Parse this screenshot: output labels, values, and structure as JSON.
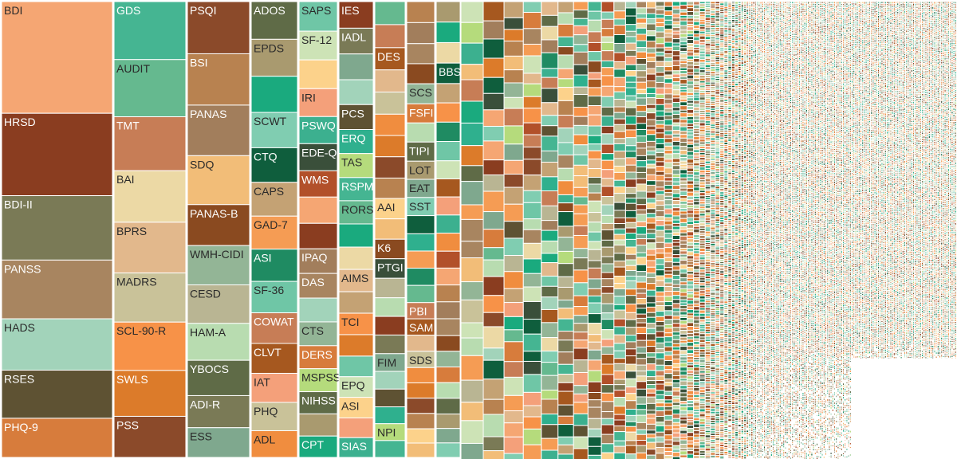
{
  "chart_data": {
    "type": "treemap",
    "layout": "columns of decreasing width, left to right, cells sorted by size",
    "palette": [
      "#f5a673",
      "#6fc6a6",
      "#a99a6f",
      "#a27e5c",
      "#a6581f",
      "#80cdb1",
      "#8a4a20",
      "#c9c299",
      "#2fb08e",
      "#b9b593",
      "#dc7b2a",
      "#45b592",
      "#8a3d20",
      "#cde3b6",
      "#1aaa7e",
      "#a88560",
      "#f4a07a",
      "#0f5e3d",
      "#93b596",
      "#f08d3f",
      "#f59c54",
      "#b8dcb0",
      "#8b4a2a",
      "#65b98f",
      "#7a7a56",
      "#fcd28b",
      "#ecd9a5",
      "#a2d3ba",
      "#3cb08f",
      "#c4a274",
      "#d77c3c",
      "#b2502a",
      "#1f8b62",
      "#5f6b47",
      "#b88250",
      "#c77d56",
      "#7fa88e",
      "#f2bd78",
      "#e2b88c",
      "#5e5233",
      "#3a4f3a",
      "#f79248",
      "#b5db7c"
    ],
    "columns": [
      [
        {
          "label": "BDI",
          "value": 137
        },
        {
          "label": "HRSD",
          "value": 101
        },
        {
          "label": "BDI-II",
          "value": 79
        },
        {
          "label": "PANSS",
          "value": 72
        },
        {
          "label": "HADS",
          "value": 63
        },
        {
          "label": "RSES",
          "value": 59
        },
        {
          "label": "PHQ-9",
          "value": 48
        }
      ],
      [
        {
          "label": "GDS",
          "value": 72
        },
        {
          "label": "AUDIT",
          "value": 71
        },
        {
          "label": "TMT",
          "value": 67
        },
        {
          "label": "BAI",
          "value": 64
        },
        {
          "label": "BPRS",
          "value": 63
        },
        {
          "label": "MADRS",
          "value": 61
        },
        {
          "label": "SCL-90-R",
          "value": 60
        },
        {
          "label": "SWLS",
          "value": 57
        },
        {
          "label": "PSS",
          "value": 51
        }
      ],
      [
        {
          "label": "PSQI",
          "value": 65
        },
        {
          "label": "BSI",
          "value": 64
        },
        {
          "label": "PANAS",
          "value": 63
        },
        {
          "label": "SDQ",
          "value": 61
        },
        {
          "label": "PANAS-B",
          "value": 51
        },
        {
          "label": "WMH-CIDI",
          "value": 49
        },
        {
          "label": "CESD",
          "value": 48
        },
        {
          "label": "HAM-A",
          "value": 46
        },
        {
          "label": "YBOCS",
          "value": 44
        },
        {
          "label": "ADI-R",
          "value": 40
        },
        {
          "label": "ESS",
          "value": 37
        }
      ],
      [
        {
          "label": "ADOS",
          "value": 48
        },
        {
          "label": "EPDS",
          "value": 47
        },
        {
          "label": "",
          "value": 46
        },
        {
          "label": "SCWT",
          "value": 45
        },
        {
          "label": "CTQ",
          "value": 44
        },
        {
          "label": "CAPS",
          "value": 43
        },
        {
          "label": "GAD-7",
          "value": 42
        },
        {
          "label": "ASI",
          "value": 41
        },
        {
          "label": "SF-36",
          "value": 40
        },
        {
          "label": "COWAT",
          "value": 39
        },
        {
          "label": "CLVT",
          "value": 38
        },
        {
          "label": "IAT",
          "value": 37
        },
        {
          "label": "PHQ",
          "value": 36
        },
        {
          "label": "ADL",
          "value": 34
        }
      ],
      [
        {
          "label": "SAPS",
          "value": 36
        },
        {
          "label": "SF-12",
          "value": 35
        },
        {
          "label": "",
          "value": 35
        },
        {
          "label": "IRI",
          "value": 34
        },
        {
          "label": "PSWQ",
          "value": 33
        },
        {
          "label": "EDE-Q",
          "value": 33
        },
        {
          "label": "WMS",
          "value": 32
        },
        {
          "label": "",
          "value": 32
        },
        {
          "label": "",
          "value": 31
        },
        {
          "label": "IPAQ",
          "value": 30
        },
        {
          "label": "DAS",
          "value": 30
        },
        {
          "label": "",
          "value": 29
        },
        {
          "label": "CTS",
          "value": 29
        },
        {
          "label": "DERS",
          "value": 28
        },
        {
          "label": "MSPSS",
          "value": 28
        },
        {
          "label": "NIHSS",
          "value": 27
        },
        {
          "label": "",
          "value": 27
        },
        {
          "label": "CPT",
          "value": 26
        }
      ],
      [
        {
          "label": "IES",
          "value": 31
        },
        {
          "label": "IADL",
          "value": 30
        },
        {
          "label": "",
          "value": 30
        },
        {
          "label": "",
          "value": 29
        },
        {
          "label": "PCS",
          "value": 29
        },
        {
          "label": "ERQ",
          "value": 28
        },
        {
          "label": "TAS",
          "value": 28
        },
        {
          "label": "RSPM",
          "value": 27
        },
        {
          "label": "RORS",
          "value": 27
        },
        {
          "label": "",
          "value": 27
        },
        {
          "label": "",
          "value": 26
        },
        {
          "label": "AIMS",
          "value": 26
        },
        {
          "label": "",
          "value": 25
        },
        {
          "label": "TCI",
          "value": 25
        },
        {
          "label": "",
          "value": 25
        },
        {
          "label": "",
          "value": 24
        },
        {
          "label": "EPQ",
          "value": 24
        },
        {
          "label": "ASI",
          "value": 24
        },
        {
          "label": "",
          "value": 23
        },
        {
          "label": "SIAS",
          "value": 23
        }
      ],
      [
        {
          "label": "",
          "value": 26
        },
        {
          "label": "",
          "value": 26
        },
        {
          "label": "DES",
          "value": 25
        },
        {
          "label": "",
          "value": 25
        },
        {
          "label": "",
          "value": 25
        },
        {
          "label": "",
          "value": 24
        },
        {
          "label": "",
          "value": 24
        },
        {
          "label": "",
          "value": 24
        },
        {
          "label": "",
          "value": 23
        },
        {
          "label": "AAI",
          "value": 23
        },
        {
          "label": "",
          "value": 23
        },
        {
          "label": "K6",
          "value": 22
        },
        {
          "label": "PTGI",
          "value": 22
        },
        {
          "label": "",
          "value": 22
        },
        {
          "label": "",
          "value": 21
        },
        {
          "label": "",
          "value": 21
        },
        {
          "label": "",
          "value": 21
        },
        {
          "label": "FIM",
          "value": 20
        },
        {
          "label": "",
          "value": 20
        },
        {
          "label": "",
          "value": 20
        },
        {
          "label": "",
          "value": 19
        },
        {
          "label": "NPI",
          "value": 19
        },
        {
          "label": "",
          "value": 19
        }
      ],
      [
        {
          "label": "",
          "value": 22
        },
        {
          "label": "",
          "value": 22
        },
        {
          "label": "",
          "value": 21
        },
        {
          "label": "",
          "value": 21
        },
        {
          "label": "SCS",
          "value": 21
        },
        {
          "label": "FSFI",
          "value": 20
        },
        {
          "label": "",
          "value": 20
        },
        {
          "label": "TIPI",
          "value": 20
        },
        {
          "label": "LOT",
          "value": 19
        },
        {
          "label": "EAT",
          "value": 19
        },
        {
          "label": "SST",
          "value": 19
        },
        {
          "label": "",
          "value": 19
        },
        {
          "label": "",
          "value": 18
        },
        {
          "label": "",
          "value": 18
        },
        {
          "label": "",
          "value": 18
        },
        {
          "label": "",
          "value": 18
        },
        {
          "label": "PBI",
          "value": 17
        },
        {
          "label": "SAM",
          "value": 17
        },
        {
          "label": "",
          "value": 17
        },
        {
          "label": "SDS",
          "value": 17
        },
        {
          "label": "",
          "value": 16
        },
        {
          "label": "",
          "value": 16
        },
        {
          "label": "",
          "value": 16
        },
        {
          "label": "",
          "value": 16
        },
        {
          "label": "",
          "value": 15
        },
        {
          "label": "",
          "value": 15
        }
      ],
      [
        {
          "label": "",
          "value": 17
        },
        {
          "label": "",
          "value": 17
        },
        {
          "label": "",
          "value": 17
        },
        {
          "label": "BBS",
          "value": 17
        },
        {
          "label": "",
          "value": 16
        },
        {
          "label": "",
          "value": 16
        },
        {
          "label": "",
          "value": 16
        },
        {
          "label": "",
          "value": 16
        },
        {
          "label": "",
          "value": 15
        },
        {
          "label": "",
          "value": 15
        },
        {
          "label": "",
          "value": 15
        },
        {
          "label": "",
          "value": 15
        },
        {
          "label": "",
          "value": 15
        },
        {
          "label": "",
          "value": 14
        },
        {
          "label": "",
          "value": 14
        },
        {
          "label": "",
          "value": 14
        },
        {
          "label": "",
          "value": 14
        },
        {
          "label": "",
          "value": 14
        },
        {
          "label": "",
          "value": 13
        },
        {
          "label": "",
          "value": 13
        },
        {
          "label": "",
          "value": 13
        },
        {
          "label": "",
          "value": 13
        },
        {
          "label": "",
          "value": 13
        },
        {
          "label": "",
          "value": 12
        },
        {
          "label": "",
          "value": 12
        },
        {
          "label": "",
          "value": 12
        }
      ]
    ]
  }
}
